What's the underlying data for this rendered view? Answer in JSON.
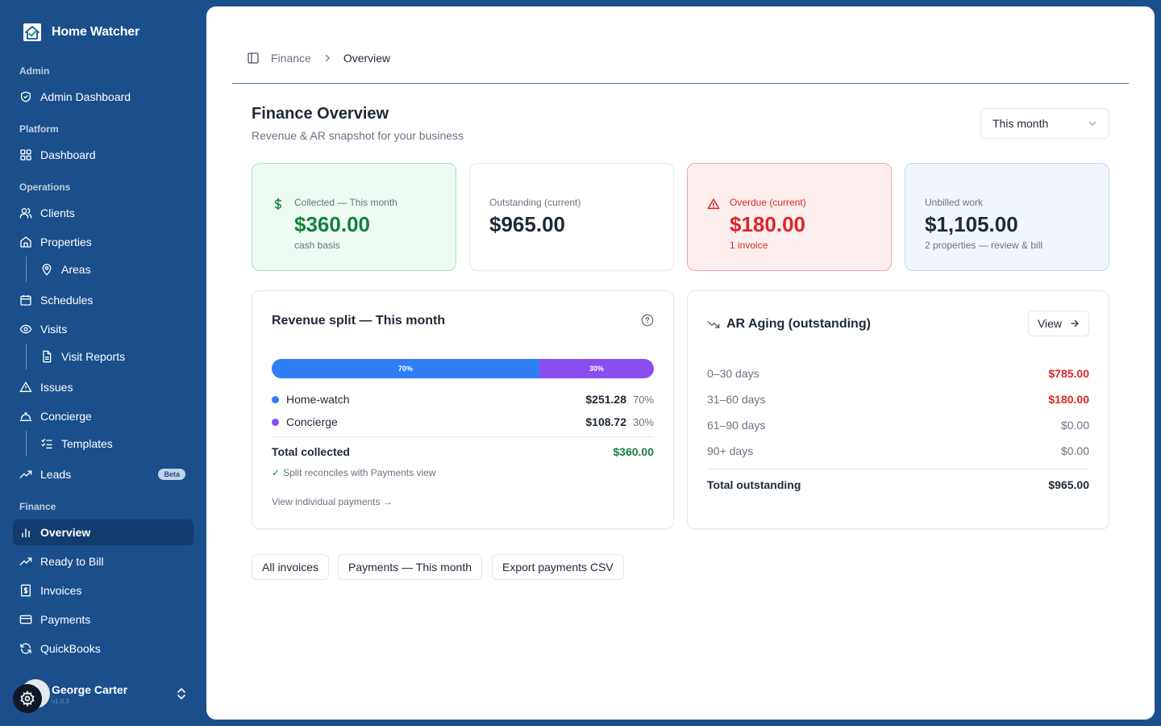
{
  "app": {
    "name": "Home Watcher"
  },
  "sidebar": {
    "sections": {
      "admin": "Admin",
      "platform": "Platform",
      "operations": "Operations",
      "finance": "Finance"
    },
    "items": {
      "admin_dashboard": "Admin Dashboard",
      "dashboard": "Dashboard",
      "clients": "Clients",
      "properties": "Properties",
      "areas": "Areas",
      "schedules": "Schedules",
      "visits": "Visits",
      "visit_reports": "Visit Reports",
      "issues": "Issues",
      "concierge": "Concierge",
      "templates": "Templates",
      "leads": "Leads",
      "leads_badge": "Beta",
      "overview": "Overview",
      "ready_to_bill": "Ready to Bill",
      "invoices": "Invoices",
      "payments": "Payments",
      "quickbooks": "QuickBooks"
    },
    "user": {
      "name": "George Carter",
      "version": "v1.0.3"
    }
  },
  "breadcrumb": {
    "parent": "Finance",
    "current": "Overview"
  },
  "header": {
    "title": "Finance Overview",
    "subtitle": "Revenue & AR snapshot for your business",
    "period": "This month"
  },
  "stats": {
    "collected": {
      "label": "Collected — This month",
      "value": "$360.00",
      "note": "cash basis"
    },
    "outstanding": {
      "label": "Outstanding (current)",
      "value": "$965.00"
    },
    "overdue": {
      "label": "Overdue (current)",
      "value": "$180.00",
      "note": "1 invoice"
    },
    "unbilled": {
      "label": "Unbilled work",
      "value": "$1,105.00",
      "note": "2 properties — review & bill"
    }
  },
  "revenue_split": {
    "title": "Revenue split — This month",
    "bar": {
      "homewatch_pct": 70,
      "concierge_pct": 30,
      "homewatch_label": "70%",
      "concierge_label": "30%"
    },
    "rows": [
      {
        "name": "Home-watch",
        "amount": "$251.28",
        "pct": "70%",
        "color": "#2f7ef6"
      },
      {
        "name": "Concierge",
        "amount": "$108.72",
        "pct": "30%",
        "color": "#8a4ef0"
      }
    ],
    "total_label": "Total collected",
    "total_value": "$360.00",
    "reconcile_check": "✓",
    "reconcile_text": "Split reconciles with Payments view",
    "view_link": "View individual payments",
    "view_arrow": "→"
  },
  "ar_aging": {
    "title": "AR Aging (outstanding)",
    "view_label": "View",
    "rows": [
      {
        "label": "0–30 days",
        "value": "$785.00"
      },
      {
        "label": "31–60 days",
        "value": "$180.00"
      },
      {
        "label": "61–90 days",
        "value": "$0.00"
      },
      {
        "label": "90+ days",
        "value": "$0.00"
      }
    ],
    "total_label": "Total outstanding",
    "total_value": "$965.00"
  },
  "actions": {
    "all_invoices": "All invoices",
    "payments_month": "Payments — This month",
    "export_csv": "Export payments CSV"
  },
  "colors": {
    "sidebar_bg": "#1a4f8c",
    "active_nav": "#123c6e",
    "green": "#16803c",
    "red": "#dc2626",
    "homewatch": "#2f7ef6",
    "concierge": "#8a4ef0"
  }
}
